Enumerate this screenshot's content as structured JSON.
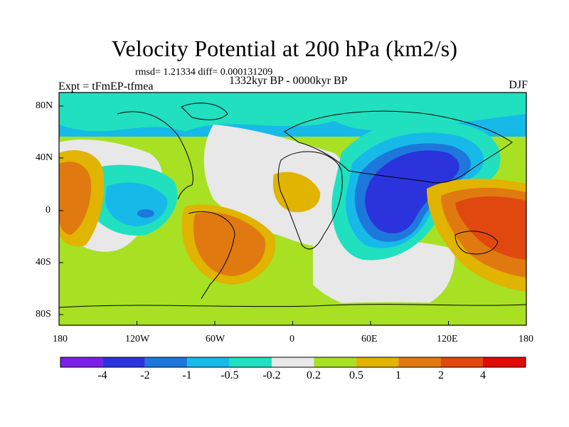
{
  "title": "Velocity Potential at 200 hPa (km2/s)",
  "stats": "rmsd= 1.21334  diff= 0.000131209",
  "period": "1332kyr BP - 0000kyr BP",
  "experiment": "Expt = tFmEP-tfmea",
  "season": "DJF",
  "axes": {
    "lon_ticks": [
      "180",
      "120W",
      "60W",
      "0",
      "60E",
      "120E",
      "180"
    ],
    "lat_ticks": [
      "80N",
      "40N",
      "0",
      "40S",
      "80S"
    ]
  },
  "colorbar": {
    "colors": [
      "#7b1fe6",
      "#2a33dc",
      "#1e78dc",
      "#17b9e8",
      "#20e0c0",
      "#e8e8e8",
      "#a8e024",
      "#e0b400",
      "#e07a10",
      "#e04810",
      "#e00a0a"
    ],
    "labels": [
      "-4",
      "-2",
      "-1",
      "-0.5",
      "-0.2",
      "0.2",
      "0.5",
      "1",
      "2",
      "4"
    ]
  }
}
